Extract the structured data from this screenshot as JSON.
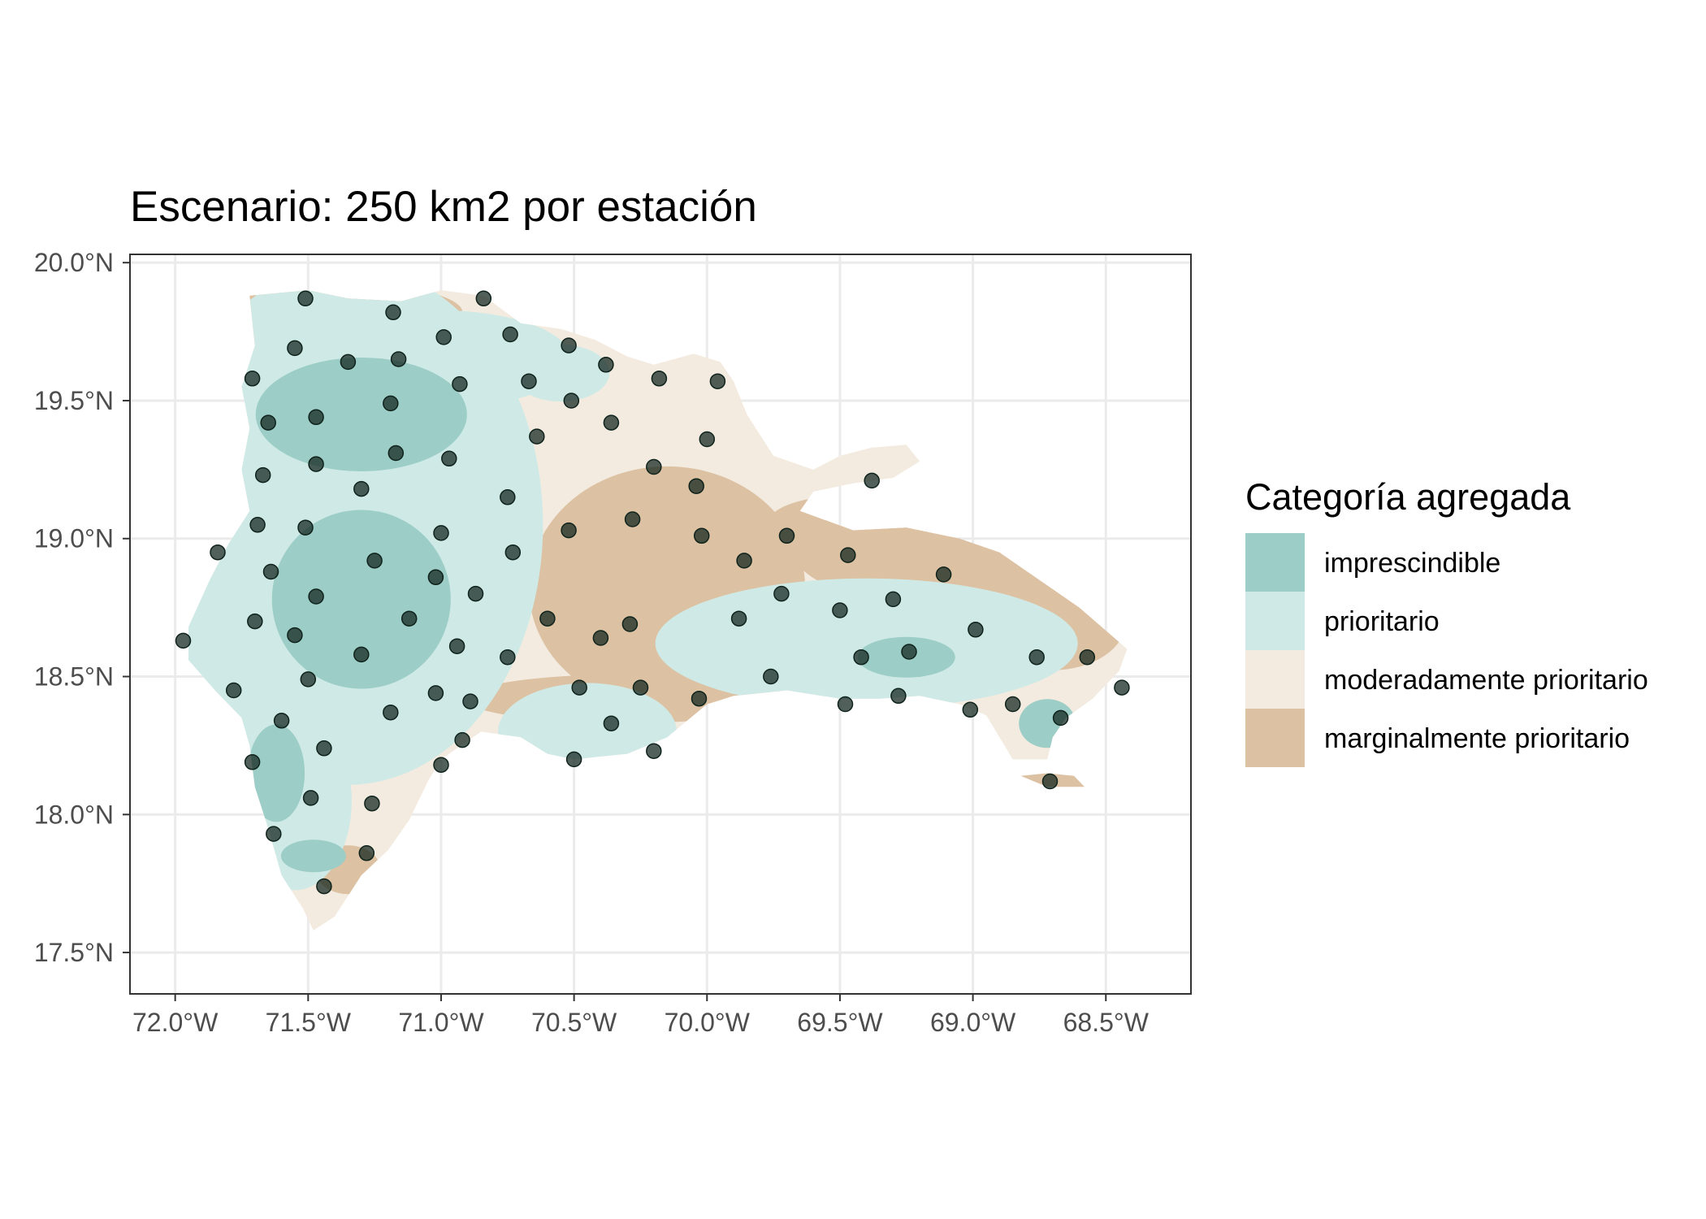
{
  "title": "Escenario: 250 km2 por estación",
  "colors": {
    "imprescindible": "#9ccdc6",
    "prioritario": "#cfeae6",
    "moderadamente_prioritario": "#f3ebe0",
    "marginalmente_prioritario": "#dcc1a2",
    "station": "#0f231c",
    "grid": "#ebebeb"
  },
  "legend": {
    "title": "Categoría agregada",
    "items": [
      {
        "label": "imprescindible",
        "color": "#9ccdc6"
      },
      {
        "label": "prioritario",
        "color": "#cfeae6"
      },
      {
        "label": "moderadamente prioritario",
        "color": "#f3ebe0"
      },
      {
        "label": "marginalmente prioritario",
        "color": "#dcc1a2"
      }
    ]
  },
  "chart_data": {
    "type": "scatter",
    "xlim": [
      -72.17,
      -68.18
    ],
    "ylim": [
      17.35,
      20.03
    ],
    "x_ticks": [
      {
        "value": -72.0,
        "label": "72.0°W"
      },
      {
        "value": -71.5,
        "label": "71.5°W"
      },
      {
        "value": -71.0,
        "label": "71.0°W"
      },
      {
        "value": -70.5,
        "label": "70.5°W"
      },
      {
        "value": -70.0,
        "label": "70.0°W"
      },
      {
        "value": -69.5,
        "label": "69.5°W"
      },
      {
        "value": -69.0,
        "label": "69.0°W"
      },
      {
        "value": -68.5,
        "label": "68.5°W"
      }
    ],
    "y_ticks": [
      {
        "value": 20.0,
        "label": "20.0°N"
      },
      {
        "value": 19.5,
        "label": "19.5°N"
      },
      {
        "value": 19.0,
        "label": "19.0°N"
      },
      {
        "value": 18.5,
        "label": "18.5°N"
      },
      {
        "value": 18.0,
        "label": "18.0°N"
      },
      {
        "value": 17.5,
        "label": "17.5°N"
      }
    ],
    "grid": true,
    "legend_position": "right",
    "country_outline": [
      [
        -71.72,
        19.88
      ],
      [
        -71.5,
        19.9
      ],
      [
        -71.35,
        19.87
      ],
      [
        -71.15,
        19.86
      ],
      [
        -71.0,
        19.9
      ],
      [
        -70.84,
        19.88
      ],
      [
        -70.7,
        19.78
      ],
      [
        -70.55,
        19.76
      ],
      [
        -70.42,
        19.72
      ],
      [
        -70.3,
        19.66
      ],
      [
        -70.2,
        19.63
      ],
      [
        -70.05,
        19.67
      ],
      [
        -69.95,
        19.64
      ],
      [
        -69.9,
        19.57
      ],
      [
        -69.85,
        19.45
      ],
      [
        -69.75,
        19.3
      ],
      [
        -69.6,
        19.25
      ],
      [
        -69.5,
        19.3
      ],
      [
        -69.38,
        19.33
      ],
      [
        -69.25,
        19.34
      ],
      [
        -69.2,
        19.28
      ],
      [
        -69.3,
        19.22
      ],
      [
        -69.45,
        19.2
      ],
      [
        -69.6,
        19.17
      ],
      [
        -69.65,
        19.1
      ],
      [
        -69.45,
        19.03
      ],
      [
        -69.25,
        19.04
      ],
      [
        -69.05,
        19.0
      ],
      [
        -68.9,
        18.95
      ],
      [
        -68.75,
        18.85
      ],
      [
        -68.6,
        18.75
      ],
      [
        -68.48,
        18.65
      ],
      [
        -68.42,
        18.6
      ],
      [
        -68.45,
        18.52
      ],
      [
        -68.55,
        18.42
      ],
      [
        -68.65,
        18.35
      ],
      [
        -68.7,
        18.28
      ],
      [
        -68.72,
        18.2
      ],
      [
        -68.85,
        18.2
      ],
      [
        -68.95,
        18.36
      ],
      [
        -69.05,
        18.4
      ],
      [
        -69.2,
        18.43
      ],
      [
        -69.35,
        18.42
      ],
      [
        -69.5,
        18.42
      ],
      [
        -69.7,
        18.45
      ],
      [
        -69.9,
        18.43
      ],
      [
        -70.0,
        18.4
      ],
      [
        -70.15,
        18.28
      ],
      [
        -70.3,
        18.22
      ],
      [
        -70.5,
        18.2
      ],
      [
        -70.6,
        18.22
      ],
      [
        -70.7,
        18.28
      ],
      [
        -70.85,
        18.3
      ],
      [
        -71.0,
        18.2
      ],
      [
        -71.05,
        18.12
      ],
      [
        -71.12,
        17.98
      ],
      [
        -71.2,
        17.87
      ],
      [
        -71.3,
        17.78
      ],
      [
        -71.4,
        17.63
      ],
      [
        -71.48,
        17.58
      ],
      [
        -71.52,
        17.66
      ],
      [
        -71.6,
        17.78
      ],
      [
        -71.65,
        17.95
      ],
      [
        -71.7,
        18.1
      ],
      [
        -71.72,
        18.25
      ],
      [
        -71.75,
        18.35
      ],
      [
        -71.85,
        18.45
      ],
      [
        -71.95,
        18.56
      ],
      [
        -71.95,
        18.68
      ],
      [
        -71.87,
        18.85
      ],
      [
        -71.8,
        18.98
      ],
      [
        -71.72,
        19.1
      ],
      [
        -71.75,
        19.25
      ],
      [
        -71.72,
        19.4
      ],
      [
        -71.75,
        19.55
      ],
      [
        -71.7,
        19.7
      ],
      [
        -71.72,
        19.88
      ]
    ],
    "saona_island": [
      [
        -68.82,
        18.14
      ],
      [
        -68.72,
        18.1
      ],
      [
        -68.58,
        18.1
      ],
      [
        -68.62,
        18.14
      ],
      [
        -68.72,
        18.15
      ],
      [
        -68.82,
        18.14
      ]
    ],
    "series": [
      {
        "values": [
          {
            "x": -71.51,
            "y": 19.87
          },
          {
            "x": -71.18,
            "y": 19.82
          },
          {
            "x": -70.84,
            "y": 19.87
          },
          {
            "x": -71.55,
            "y": 19.69
          },
          {
            "x": -71.35,
            "y": 19.64
          },
          {
            "x": -71.16,
            "y": 19.65
          },
          {
            "x": -70.99,
            "y": 19.73
          },
          {
            "x": -70.74,
            "y": 19.74
          },
          {
            "x": -70.52,
            "y": 19.7
          },
          {
            "x": -70.38,
            "y": 19.63
          },
          {
            "x": -70.18,
            "y": 19.58
          },
          {
            "x": -71.71,
            "y": 19.58
          },
          {
            "x": -71.65,
            "y": 19.42
          },
          {
            "x": -71.47,
            "y": 19.44
          },
          {
            "x": -71.19,
            "y": 19.49
          },
          {
            "x": -70.93,
            "y": 19.56
          },
          {
            "x": -70.67,
            "y": 19.57
          },
          {
            "x": -70.51,
            "y": 19.5
          },
          {
            "x": -70.36,
            "y": 19.42
          },
          {
            "x": -69.96,
            "y": 19.57
          },
          {
            "x": -71.47,
            "y": 19.27
          },
          {
            "x": -71.67,
            "y": 19.23
          },
          {
            "x": -71.3,
            "y": 19.18
          },
          {
            "x": -71.17,
            "y": 19.31
          },
          {
            "x": -70.97,
            "y": 19.29
          },
          {
            "x": -70.64,
            "y": 19.37
          },
          {
            "x": -70.2,
            "y": 19.26
          },
          {
            "x": -70.0,
            "y": 19.36
          },
          {
            "x": -70.04,
            "y": 19.19
          },
          {
            "x": -69.38,
            "y": 19.21
          },
          {
            "x": -71.69,
            "y": 19.05
          },
          {
            "x": -71.51,
            "y": 19.04
          },
          {
            "x": -71.0,
            "y": 19.02
          },
          {
            "x": -70.75,
            "y": 19.15
          },
          {
            "x": -70.73,
            "y": 18.95
          },
          {
            "x": -70.52,
            "y": 19.03
          },
          {
            "x": -70.28,
            "y": 19.07
          },
          {
            "x": -70.02,
            "y": 19.01
          },
          {
            "x": -69.86,
            "y": 18.92
          },
          {
            "x": -69.7,
            "y": 19.01
          },
          {
            "x": -69.47,
            "y": 18.94
          },
          {
            "x": -69.11,
            "y": 18.87
          },
          {
            "x": -71.84,
            "y": 18.95
          },
          {
            "x": -71.64,
            "y": 18.88
          },
          {
            "x": -71.47,
            "y": 18.79
          },
          {
            "x": -71.25,
            "y": 18.92
          },
          {
            "x": -71.02,
            "y": 18.86
          },
          {
            "x": -70.87,
            "y": 18.8
          },
          {
            "x": -70.6,
            "y": 18.71
          },
          {
            "x": -70.29,
            "y": 18.69
          },
          {
            "x": -69.88,
            "y": 18.71
          },
          {
            "x": -69.72,
            "y": 18.8
          },
          {
            "x": -69.5,
            "y": 18.74
          },
          {
            "x": -69.3,
            "y": 18.78
          },
          {
            "x": -71.7,
            "y": 18.7
          },
          {
            "x": -71.55,
            "y": 18.65
          },
          {
            "x": -71.12,
            "y": 18.71
          },
          {
            "x": -70.94,
            "y": 18.61
          },
          {
            "x": -70.4,
            "y": 18.64
          },
          {
            "x": -71.97,
            "y": 18.63
          },
          {
            "x": -71.3,
            "y": 18.58
          },
          {
            "x": -70.75,
            "y": 18.57
          },
          {
            "x": -69.42,
            "y": 18.57
          },
          {
            "x": -69.24,
            "y": 18.59
          },
          {
            "x": -68.99,
            "y": 18.67
          },
          {
            "x": -68.76,
            "y": 18.57
          },
          {
            "x": -68.57,
            "y": 18.57
          },
          {
            "x": -71.5,
            "y": 18.49
          },
          {
            "x": -71.78,
            "y": 18.45
          },
          {
            "x": -71.02,
            "y": 18.44
          },
          {
            "x": -70.89,
            "y": 18.41
          },
          {
            "x": -70.48,
            "y": 18.46
          },
          {
            "x": -70.25,
            "y": 18.46
          },
          {
            "x": -70.03,
            "y": 18.42
          },
          {
            "x": -69.76,
            "y": 18.5
          },
          {
            "x": -69.48,
            "y": 18.4
          },
          {
            "x": -69.28,
            "y": 18.43
          },
          {
            "x": -69.01,
            "y": 18.38
          },
          {
            "x": -68.85,
            "y": 18.4
          },
          {
            "x": -68.67,
            "y": 18.35
          },
          {
            "x": -68.44,
            "y": 18.46
          },
          {
            "x": -71.6,
            "y": 18.34
          },
          {
            "x": -71.19,
            "y": 18.37
          },
          {
            "x": -70.36,
            "y": 18.33
          },
          {
            "x": -71.44,
            "y": 18.24
          },
          {
            "x": -70.92,
            "y": 18.27
          },
          {
            "x": -70.5,
            "y": 18.2
          },
          {
            "x": -70.2,
            "y": 18.23
          },
          {
            "x": -71.71,
            "y": 18.19
          },
          {
            "x": -71.0,
            "y": 18.18
          },
          {
            "x": -68.71,
            "y": 18.12
          },
          {
            "x": -71.49,
            "y": 18.06
          },
          {
            "x": -71.26,
            "y": 18.04
          },
          {
            "x": -71.63,
            "y": 17.93
          },
          {
            "x": -71.28,
            "y": 17.86
          },
          {
            "x": -71.44,
            "y": 17.74
          }
        ]
      }
    ]
  }
}
